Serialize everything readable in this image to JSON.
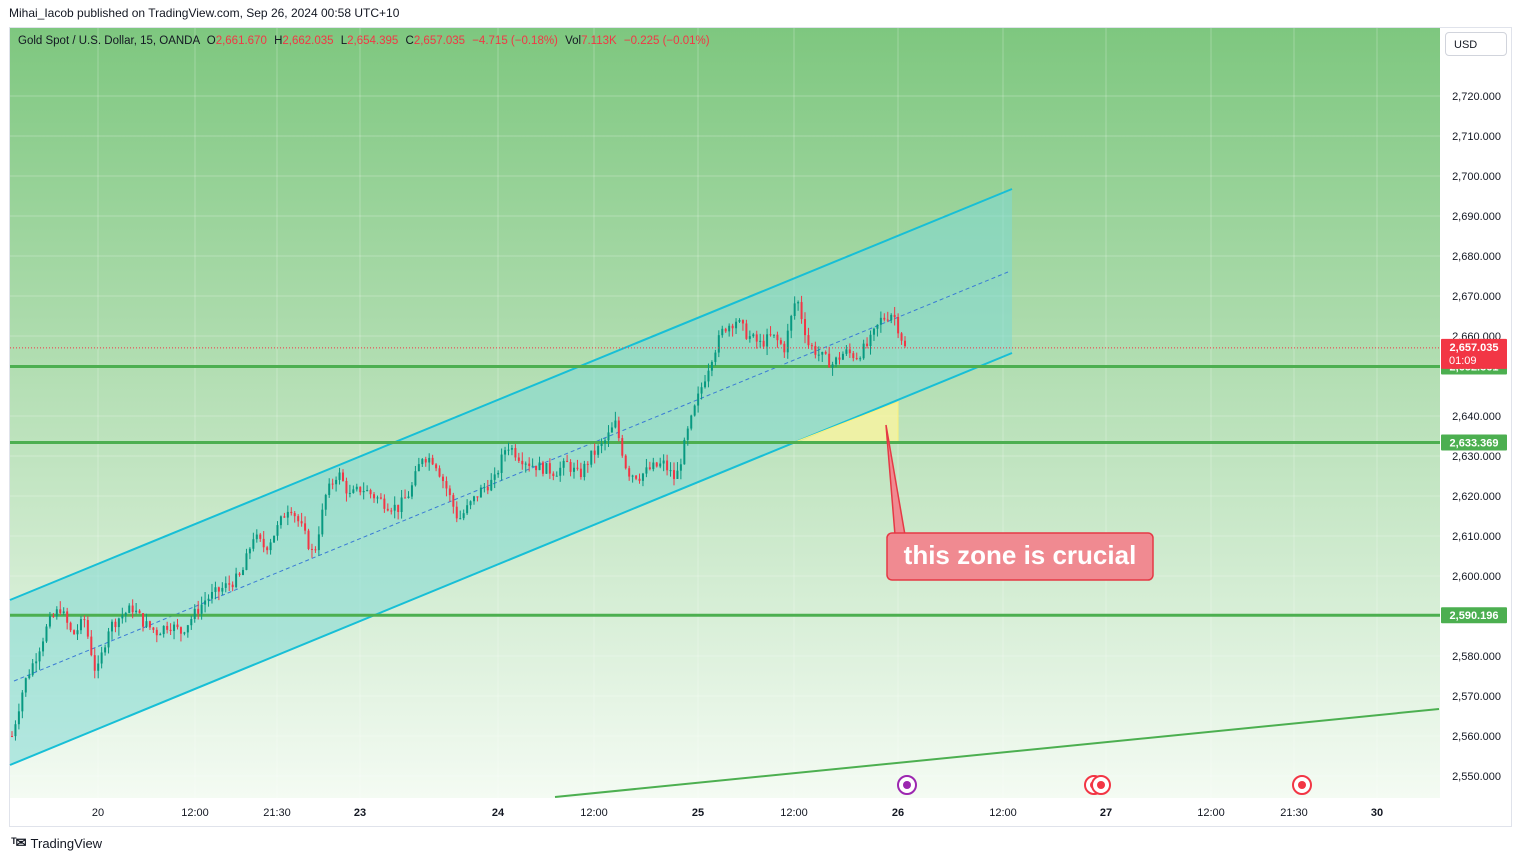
{
  "header": {
    "published_by": "Mihai_Iacob published on TradingView.com, Sep 26, 2024 00:58 UTC+10"
  },
  "legend": {
    "symbol": "Gold Spot / U.S. Dollar, 15, OANDA",
    "o_label": "O",
    "o_value": "2,661.670",
    "h_label": "H",
    "h_value": "2,662.035",
    "l_label": "L",
    "l_value": "2,654.395",
    "c_label": "C",
    "c_value": "2,657.035",
    "change": "−4.715 (−0.18%)",
    "vol_label": "Vol",
    "vol_value": "7.113K",
    "vol_change": "−0.225 (−0.01%)"
  },
  "currency_button": "USD",
  "footer": {
    "brand": "TradingView"
  },
  "colors": {
    "bg_top": "#7ec77f",
    "bg_bottom": "#f4fbf3",
    "channel_line": "#17bfd6",
    "channel_fill": "#7fd8d3",
    "horizontal_level": "#4caf50",
    "candle_up": "#089981",
    "candle_down": "#f23645",
    "price_label": "#f23645",
    "level_label": "#4caf50",
    "callout": "#f08a91"
  },
  "chart_data": {
    "type": "line",
    "title": "Gold Spot / U.S. Dollar, 15, OANDA",
    "x_ticks": [
      "20",
      "12:00",
      "21:30",
      "23",
      "24",
      "12:00",
      "25",
      "12:00",
      "26",
      "12:00",
      "27",
      "12:00",
      "21:30",
      "30"
    ],
    "y_ticks": [
      "2,720.000",
      "2,710.000",
      "2,700.000",
      "2,690.000",
      "2,680.000",
      "2,670.000",
      "2,660.000",
      "2,640.000",
      "2,630.000",
      "2,620.000",
      "2,610.000",
      "2,600.000",
      "2,580.000",
      "2,570.000",
      "2,560.000",
      "2,550.000"
    ],
    "ylim": [
      2545,
      2730
    ],
    "price_path": [
      2560,
      2573,
      2580,
      2588,
      2592,
      2585,
      2589,
      2575,
      2587,
      2590,
      2592,
      2588,
      2586,
      2588,
      2586,
      2590,
      2594,
      2596,
      2598,
      2600,
      2610,
      2607,
      2612,
      2618,
      2612,
      2605,
      2620,
      2626,
      2620,
      2622,
      2620,
      2618,
      2617,
      2621,
      2630,
      2629,
      2622,
      2614,
      2618,
      2622,
      2624,
      2633,
      2630,
      2628,
      2627,
      2626,
      2628,
      2625,
      2630,
      2633,
      2638,
      2626,
      2625,
      2627,
      2628,
      2624,
      2636,
      2646,
      2655,
      2662,
      2664,
      2660,
      2658,
      2660,
      2657,
      2670,
      2658,
      2655,
      2653,
      2656,
      2655,
      2658,
      2664,
      2666,
      2657
    ],
    "horizontal_levels": [
      {
        "label": "2,652.361",
        "value": 2652.361
      },
      {
        "label": "2,633.369",
        "value": 2633.369
      },
      {
        "label": "2,590.196",
        "value": 2590.196
      }
    ],
    "last_price": {
      "value": 2657.035,
      "label": "2,657.035",
      "countdown": "01:09"
    },
    "annotations": [
      {
        "text": "this zone is crucial"
      }
    ],
    "grid": true,
    "legend_position": "top-left"
  }
}
